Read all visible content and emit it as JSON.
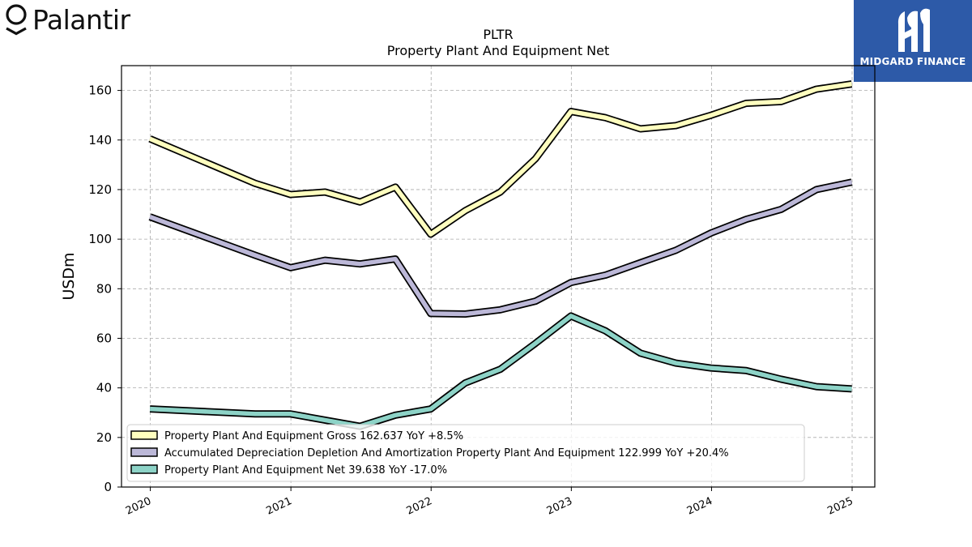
{
  "branding": {
    "logo_text": "Palantir",
    "partner_name": "MIDGARD FINANCE"
  },
  "chart_data": {
    "type": "line",
    "title": "PLTR",
    "subtitle": "Property Plant And Equipment Net",
    "ylabel": "USDm",
    "xlabel": "",
    "ylim": [
      0,
      170
    ],
    "yticks": [
      0,
      20,
      40,
      60,
      80,
      100,
      120,
      140,
      160
    ],
    "xlim": [
      "2019-10-18",
      "2025-03-01"
    ],
    "xticks": [
      {
        "label": "2020",
        "date": "2020-01-01"
      },
      {
        "label": "2021",
        "date": "2021-01-01"
      },
      {
        "label": "2022",
        "date": "2022-01-01"
      },
      {
        "label": "2023",
        "date": "2023-01-01"
      },
      {
        "label": "2024",
        "date": "2024-01-01"
      },
      {
        "label": "2025",
        "date": "2025-01-01"
      }
    ],
    "grid": true,
    "legend_position": "lower-left",
    "x": [
      "2019-12-31",
      "2020-09-30",
      "2020-12-31",
      "2021-03-31",
      "2021-06-30",
      "2021-09-30",
      "2021-12-31",
      "2022-03-31",
      "2022-06-30",
      "2022-09-30",
      "2022-12-31",
      "2023-03-31",
      "2023-06-30",
      "2023-09-30",
      "2023-12-31",
      "2024-03-31",
      "2024-06-30",
      "2024-09-30",
      "2024-12-31"
    ],
    "series": [
      {
        "name": "Property Plant And Equipment Gross",
        "legend_label": "Property Plant And Equipment Gross  162.637 YoY +8.5%",
        "color": "#ffffbf",
        "values": [
          140.5,
          122.5,
          118.0,
          119.0,
          115.0,
          121.0,
          102.0,
          111.5,
          119.0,
          132.5,
          151.5,
          149.0,
          144.5,
          145.8,
          150.0,
          154.8,
          155.5,
          160.5,
          162.6
        ]
      },
      {
        "name": "Accumulated Depreciation Depletion And Amortization Property Plant And Equipment",
        "legend_label": "Accumulated Depreciation Depletion And Amortization Property Plant And Equipment  122.999 YoY +20.4%",
        "color": "#bcb8d8",
        "values": [
          109.0,
          93.5,
          88.5,
          91.5,
          90.0,
          92.0,
          70.0,
          69.8,
          71.5,
          75.0,
          82.5,
          85.5,
          90.5,
          95.5,
          102.5,
          108.0,
          112.0,
          120.0,
          123.0
        ]
      },
      {
        "name": "Property Plant And Equipment Net",
        "legend_label": "Property Plant And Equipment Net  39.638 YoY -17.0%",
        "color": "#8dd3c7",
        "values": [
          31.5,
          29.5,
          29.5,
          27.0,
          24.5,
          29.0,
          31.5,
          42.0,
          47.5,
          58.0,
          69.0,
          63.0,
          54.0,
          50.0,
          48.0,
          47.0,
          43.5,
          40.5,
          39.6
        ]
      }
    ]
  }
}
